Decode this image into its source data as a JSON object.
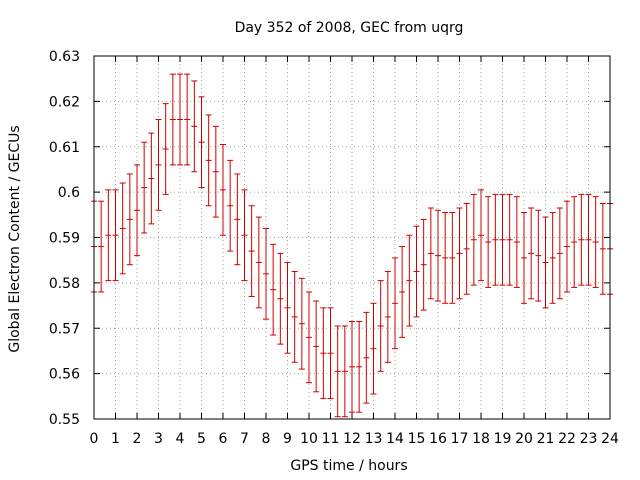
{
  "chart_data": {
    "type": "scatter",
    "title": "Day 352 of 2008, GEC from uqrg",
    "xlabel": "GPS time / hours",
    "ylabel": "Global Electron Content / GECUs",
    "xlim": [
      0,
      24
    ],
    "ylim": [
      0.55,
      0.63
    ],
    "x_ticks": [
      "0",
      "1",
      "2",
      "3",
      "4",
      "5",
      "6",
      "7",
      "8",
      "9",
      "10",
      "11",
      "12",
      "13",
      "14",
      "15",
      "16",
      "17",
      "18",
      "19",
      "20",
      "21",
      "22",
      "23",
      "24"
    ],
    "y_ticks": [
      "0.55",
      "0.56",
      "0.57",
      "0.58",
      "0.59",
      "0.6",
      "0.61",
      "0.62",
      "0.63"
    ],
    "grid": true,
    "error": 0.01,
    "series_color": "#cc0000",
    "x": [
      0,
      0.333,
      0.667,
      1,
      1.333,
      1.667,
      2,
      2.333,
      2.667,
      3,
      3.333,
      3.667,
      4,
      4.333,
      4.667,
      5,
      5.333,
      5.667,
      6,
      6.333,
      6.667,
      7,
      7.333,
      7.667,
      8,
      8.333,
      8.667,
      9,
      9.333,
      9.667,
      10,
      10.333,
      10.667,
      11,
      11.333,
      11.667,
      12,
      12.333,
      12.667,
      13,
      13.333,
      13.667,
      14,
      14.333,
      14.667,
      15,
      15.333,
      15.667,
      16,
      16.333,
      16.667,
      17,
      17.333,
      17.667,
      18,
      18.333,
      18.667,
      19,
      19.333,
      19.667,
      20,
      20.333,
      20.667,
      21,
      21.333,
      21.667,
      22,
      22.333,
      22.667,
      23,
      23.333,
      23.667,
      24
    ],
    "y": [
      0.588,
      0.588,
      0.5905,
      0.5905,
      0.592,
      0.594,
      0.596,
      0.601,
      0.603,
      0.606,
      0.6095,
      0.616,
      0.616,
      0.616,
      0.6145,
      0.611,
      0.607,
      0.6045,
      0.6005,
      0.597,
      0.594,
      0.5905,
      0.587,
      0.5845,
      0.582,
      0.5785,
      0.5765,
      0.5745,
      0.5725,
      0.571,
      0.568,
      0.566,
      0.5645,
      0.5645,
      0.5605,
      0.5605,
      0.5615,
      0.5615,
      0.5635,
      0.5655,
      0.5705,
      0.5725,
      0.5755,
      0.578,
      0.5805,
      0.5825,
      0.584,
      0.5865,
      0.586,
      0.5855,
      0.5855,
      0.5865,
      0.5875,
      0.5895,
      0.5905,
      0.589,
      0.5895,
      0.5895,
      0.5895,
      0.589,
      0.5855,
      0.5865,
      0.586,
      0.5845,
      0.5855,
      0.5865,
      0.588,
      0.589,
      0.5895,
      0.5895,
      0.589,
      0.5875,
      0.5875
    ]
  }
}
